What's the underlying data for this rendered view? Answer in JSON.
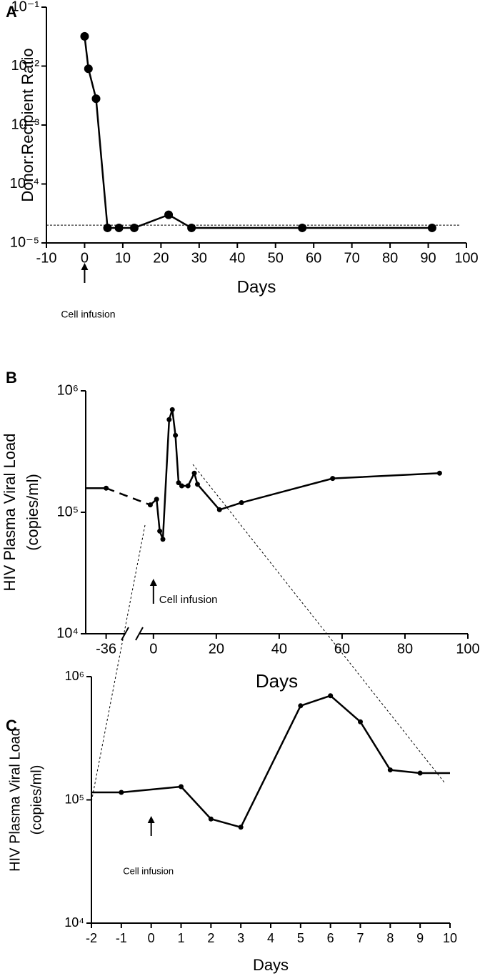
{
  "chart_data": [
    {
      "type": "line",
      "panel_label": "A",
      "y_label": "Donor:Recipient Ratio",
      "x_label": "Days",
      "x": [
        0,
        1,
        3,
        6,
        9,
        13,
        22,
        28,
        57,
        91
      ],
      "series": [
        {
          "color": "#000000",
          "values": [
            0.032,
            0.009,
            0.0028,
            1.8e-05,
            1.8e-05,
            1.8e-05,
            3e-05,
            1.8e-05,
            1.8e-05,
            1.8e-05
          ]
        }
      ],
      "log_y": true,
      "ylim": [
        1e-05,
        0.1
      ],
      "yticks": [
        {
          "value": 1e-05,
          "label": "10⁻⁵"
        },
        {
          "value": 0.0001,
          "label": "10⁻⁴"
        },
        {
          "value": 0.001,
          "label": "10⁻³"
        },
        {
          "value": 0.01,
          "label": "10⁻²"
        },
        {
          "value": 0.1,
          "label": "10⁻¹"
        }
      ],
      "xlim": [
        -10,
        100
      ],
      "xticks": [
        -10,
        0,
        10,
        20,
        30,
        40,
        50,
        60,
        70,
        80,
        90,
        100
      ],
      "reference_line": 2e-05,
      "annotation": {
        "text": "Cell infusion",
        "x": 0
      }
    },
    {
      "type": "line",
      "panel_label": "B",
      "y_label": [
        "HIV Plasma Viral Load",
        "(copies/ml)"
      ],
      "x_label": "Days",
      "x": [
        -36,
        -1,
        1,
        2,
        3,
        5,
        6,
        7,
        8,
        9,
        11,
        13,
        14,
        21,
        28,
        57,
        91
      ],
      "series": [
        {
          "color": "#000000",
          "values": [
            158000,
            115000,
            128000,
            70000,
            60000,
            580000,
            700000,
            430000,
            175000,
            165000,
            165000,
            210000,
            170000,
            105000,
            120000,
            190000,
            210000
          ]
        }
      ],
      "log_y": true,
      "ylim": [
        10000,
        1000000
      ],
      "yticks": [
        {
          "value": 10000,
          "label": "10⁴"
        },
        {
          "value": 100000,
          "label": "10⁵"
        },
        {
          "value": 1000000,
          "label": "10⁶"
        }
      ],
      "x_segments": [
        [
          -42.5,
          -30
        ],
        [
          -4.5,
          100
        ]
      ],
      "xticks": [
        -36,
        0,
        20,
        40,
        60,
        80,
        100
      ],
      "annotation": {
        "text": "Cell infusion",
        "x": 0
      }
    },
    {
      "type": "line",
      "panel_label": "C",
      "y_label": [
        "HIV Plasma Viral Load",
        "(copies/ml)"
      ],
      "x_label": "Days",
      "x": [
        -2,
        -1,
        1,
        2,
        3,
        5,
        6,
        7,
        8,
        9,
        10
      ],
      "series": [
        {
          "color": "#000000",
          "values": [
            115000,
            115000,
            128000,
            70000,
            60000,
            580000,
            700000,
            430000,
            175000,
            165000,
            165000
          ]
        }
      ],
      "log_y": true,
      "ylim": [
        10000,
        1000000
      ],
      "yticks": [
        {
          "value": 10000,
          "label": "10⁴"
        },
        {
          "value": 100000,
          "label": "10⁵"
        },
        {
          "value": 1000000,
          "label": "10⁶"
        }
      ],
      "xlim": [
        -2,
        10
      ],
      "xticks": [
        -2,
        -1,
        0,
        1,
        2,
        3,
        4,
        5,
        6,
        7,
        8,
        9,
        10
      ],
      "annotation": {
        "text": "Cell infusion",
        "x": 0
      }
    }
  ]
}
